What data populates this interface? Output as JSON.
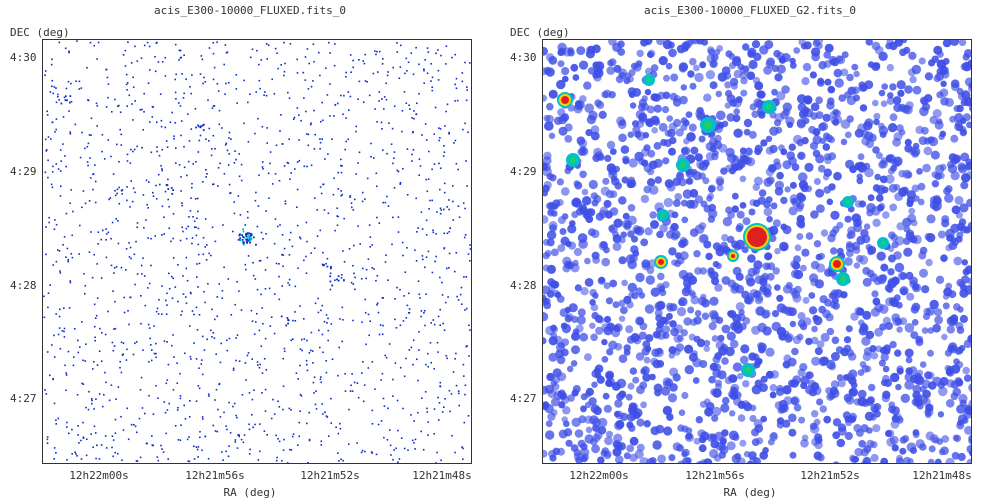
{
  "colors": {
    "sparse_dot": "#0a2cc8",
    "smooth_low": "#3f4fe6",
    "smooth_mid": "#00c0c8",
    "smooth_hot": "#e02020",
    "source_peak": "#ffd000"
  },
  "panels": [
    {
      "title": "acis_E300-10000_FLUXED.fits_0",
      "ylabel": "DEC (deg)",
      "xlabel": "RA (deg)",
      "yticks": [
        "4:30",
        "4:29",
        "4:28",
        "4:27"
      ],
      "xticks": [
        "12h22m00s",
        "12h21m56s",
        "12h21m52s",
        "12h21m48s"
      ],
      "image": "sparse-counts-map"
    },
    {
      "title": "acis_E300-10000_FLUXED_G2.fits_0",
      "ylabel": "DEC (deg)",
      "xlabel": "RA (deg)",
      "yticks": [
        "4:30",
        "4:29",
        "4:28",
        "4:27"
      ],
      "xticks": [
        "12h22m00s",
        "12h21m56s",
        "12h21m52s",
        "12h21m48s"
      ],
      "image": "gaussian-smoothed-map"
    }
  ]
}
